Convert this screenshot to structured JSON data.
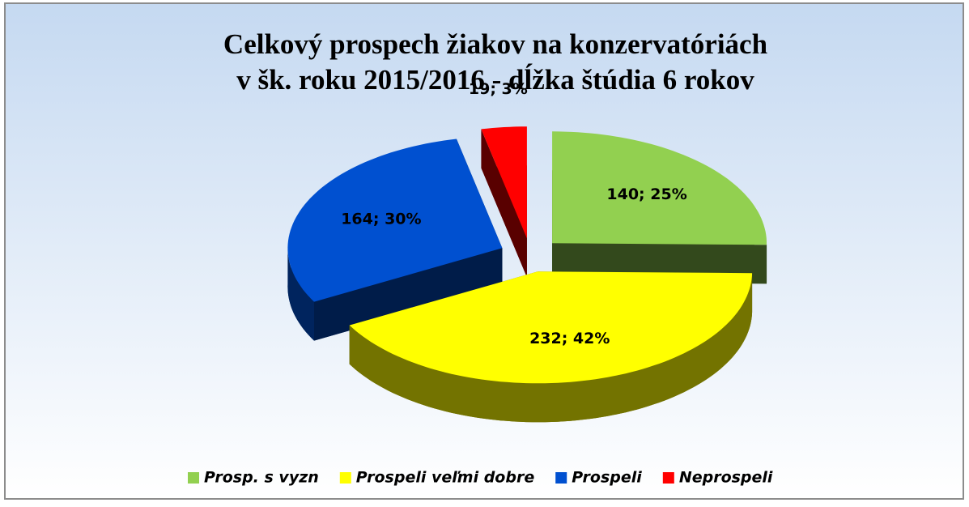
{
  "chart_data": {
    "type": "pie3d",
    "title": [
      "Celkový prospech žiakov na konzervatóriách",
      "v šk. roku 2015/2016 - dĺžka štúdia 6 rokov"
    ],
    "categories": [
      "Prosp. s vyzn",
      "Prospeli veľmi dobre",
      "Prospeli",
      "Neprospeli"
    ],
    "values": [
      140,
      232,
      164,
      19
    ],
    "value_labels": [
      "140; 25%",
      "232; 42%",
      "164; 30%",
      "19; 3%"
    ],
    "colors": [
      "#92d050",
      "#ffff00",
      "#0050d0",
      "#ff0000"
    ],
    "legend": "bottom"
  }
}
